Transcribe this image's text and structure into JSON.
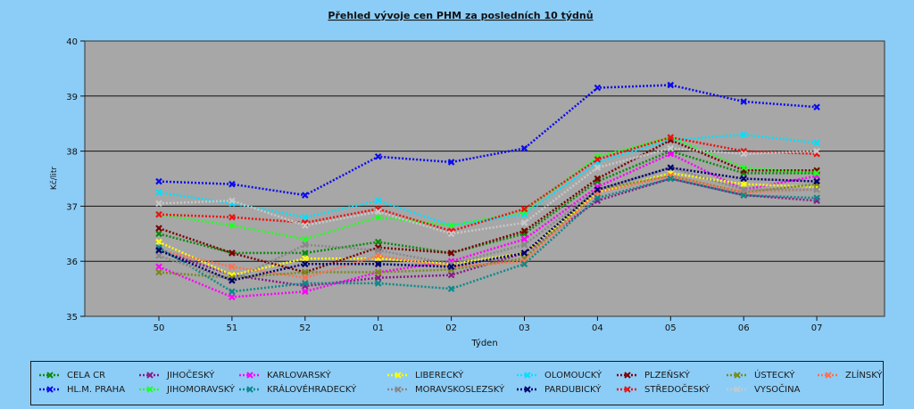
{
  "chart_data": {
    "type": "line",
    "title": "Přehled vývoje cen PHM za posledních 10 týdnů",
    "xlabel": "Týden",
    "ylabel": "Kč/litr",
    "ylim": [
      35,
      40
    ],
    "yticks": [
      "35",
      "36",
      "37",
      "38",
      "39",
      "40"
    ],
    "categories": [
      "50",
      "51",
      "52",
      "01",
      "02",
      "03",
      "04",
      "05",
      "06",
      "07"
    ],
    "grid": true,
    "legend_position": "bottom",
    "series": [
      {
        "name": "CELA CR",
        "color": "#0b8a0b",
        "values": [
          36.5,
          36.15,
          36.15,
          36.35,
          36.15,
          36.5,
          37.45,
          38.0,
          37.6,
          37.6
        ]
      },
      {
        "name": "JIHOČESKÝ",
        "color": "#8a1a8a",
        "values": [
          36.2,
          35.75,
          35.55,
          35.7,
          35.75,
          36.15,
          37.1,
          37.5,
          37.2,
          37.1
        ]
      },
      {
        "name": "KARLOVARSKÝ",
        "color": "#ff00ff",
        "values": [
          35.9,
          35.35,
          35.45,
          35.8,
          36.0,
          36.4,
          37.35,
          37.95,
          37.3,
          37.55
        ]
      },
      {
        "name": "LIBERECKÝ",
        "color": "#ffff00",
        "values": [
          36.35,
          35.75,
          36.05,
          36.05,
          35.95,
          36.15,
          37.25,
          37.6,
          37.4,
          37.35
        ]
      },
      {
        "name": "OLOMOUCKÝ",
        "color": "#00e0ff",
        "values": [
          37.25,
          37.05,
          36.8,
          37.1,
          36.65,
          36.85,
          37.8,
          38.2,
          38.3,
          38.15
        ]
      },
      {
        "name": "PLZEŇSKÝ",
        "color": "#7a0000",
        "values": [
          36.6,
          36.15,
          35.8,
          36.25,
          36.15,
          36.55,
          37.5,
          38.2,
          37.65,
          37.65
        ]
      },
      {
        "name": "ÚSTECKÝ",
        "color": "#7a8a1a",
        "values": [
          35.8,
          35.7,
          35.8,
          35.8,
          35.85,
          36.05,
          37.3,
          37.55,
          37.25,
          37.4
        ]
      },
      {
        "name": "ZLÍNSKÝ",
        "color": "#ff7050",
        "values": [
          36.2,
          35.9,
          35.7,
          36.1,
          35.9,
          36.0,
          37.25,
          37.55,
          37.25,
          37.3
        ]
      },
      {
        "name": "HL.M. PRAHA",
        "color": "#0b0bee",
        "values": [
          37.45,
          37.4,
          37.2,
          37.9,
          37.8,
          38.05,
          39.15,
          39.2,
          38.9,
          38.8
        ]
      },
      {
        "name": "JIHOMORAVSKÝ",
        "color": "#22ff22",
        "values": [
          36.85,
          36.65,
          36.4,
          36.8,
          36.65,
          36.9,
          37.9,
          38.25,
          37.7,
          37.6
        ]
      },
      {
        "name": "KRÁLOVÉHRADECKÝ",
        "color": "#0a8a8a",
        "values": [
          36.25,
          35.45,
          35.6,
          35.6,
          35.5,
          35.95,
          37.15,
          37.5,
          37.2,
          37.15
        ]
      },
      {
        "name": "MORAVSKOSLEZSKÝ",
        "color": "#888888",
        "values": [
          36.1,
          35.65,
          36.3,
          36.2,
          35.95,
          36.3,
          37.3,
          37.7,
          37.3,
          37.3
        ]
      },
      {
        "name": "PARDUBICKÝ",
        "color": "#00006e",
        "values": [
          36.2,
          35.65,
          35.95,
          35.95,
          35.9,
          36.15,
          37.3,
          37.7,
          37.5,
          37.45
        ]
      },
      {
        "name": "STŘEDOČESKÝ",
        "color": "#ee1111",
        "values": [
          36.85,
          36.8,
          36.7,
          36.95,
          36.55,
          36.95,
          37.85,
          38.25,
          38.0,
          37.95
        ]
      },
      {
        "name": "VYSOČINA",
        "color": "#c8c8c8",
        "values": [
          37.05,
          37.1,
          36.65,
          36.9,
          36.5,
          36.7,
          37.7,
          38.05,
          37.95,
          38.0
        ]
      }
    ]
  }
}
